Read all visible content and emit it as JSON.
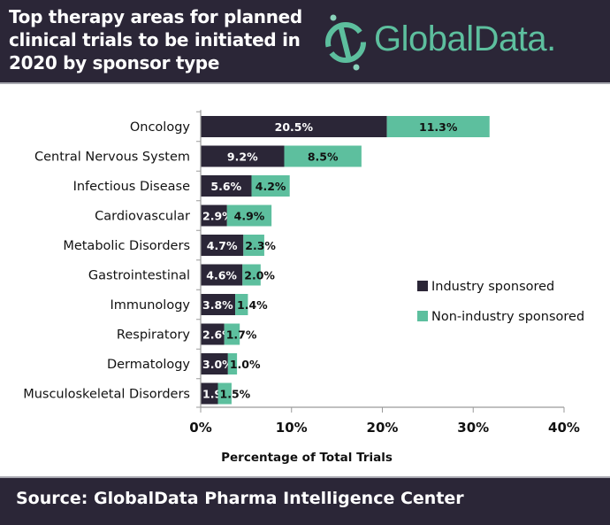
{
  "header": {
    "title_lines": [
      "Top therapy areas for planned",
      "clinical trials to be initiated in",
      "2020 by sponsor type"
    ],
    "logo_text": "GlobalData."
  },
  "colors": {
    "industry": "#2b2637",
    "non_industry": "#5dbf9e",
    "header_bg": "#2b2637",
    "brand_green": "#5dbf9e"
  },
  "chart_data": {
    "type": "bar",
    "orientation": "horizontal",
    "stacked": true,
    "title": "Top therapy areas for planned clinical trials to be initiated in 2020 by sponsor type",
    "categories": [
      "Oncology",
      "Central Nervous System",
      "Infectious Disease",
      "Cardiovascular",
      "Metabolic Disorders",
      "Gastrointestinal",
      "Immunology",
      "Respiratory",
      "Dermatology",
      "Musculoskeletal Disorders"
    ],
    "series": [
      {
        "name": "Industry sponsored",
        "values": [
          20.5,
          9.2,
          5.6,
          2.9,
          4.7,
          4.6,
          3.8,
          2.6,
          3.0,
          1.9
        ],
        "labels": [
          "20.5%",
          "9.2%",
          "5.6%",
          "2.9%",
          "4.7%",
          "4.6%",
          "3.8%",
          "2.6%",
          "3.0%",
          "1.9%"
        ]
      },
      {
        "name": "Non-industry sponsored",
        "values": [
          11.3,
          8.5,
          4.2,
          4.9,
          2.3,
          2.0,
          1.4,
          1.7,
          1.0,
          1.5
        ],
        "labels": [
          "11.3%",
          "8.5%",
          "4.2%",
          "4.9%",
          "2.3%",
          "2.0%",
          "1.4%",
          "1.7%",
          "1.0%",
          "1.5%"
        ]
      }
    ],
    "xlabel": "Percentage of Total Trials",
    "ylabel": "",
    "xlim": [
      0,
      40
    ],
    "xticks": [
      0,
      10,
      20,
      30,
      40
    ],
    "xtick_labels": [
      "0%",
      "10%",
      "20%",
      "30%",
      "40%"
    ],
    "grid": false,
    "legend": {
      "position": "right",
      "entries": [
        "Industry sponsored",
        "Non-industry sponsored"
      ]
    }
  },
  "footer": {
    "source": "Source:  GlobalData Pharma Intelligence Center"
  }
}
